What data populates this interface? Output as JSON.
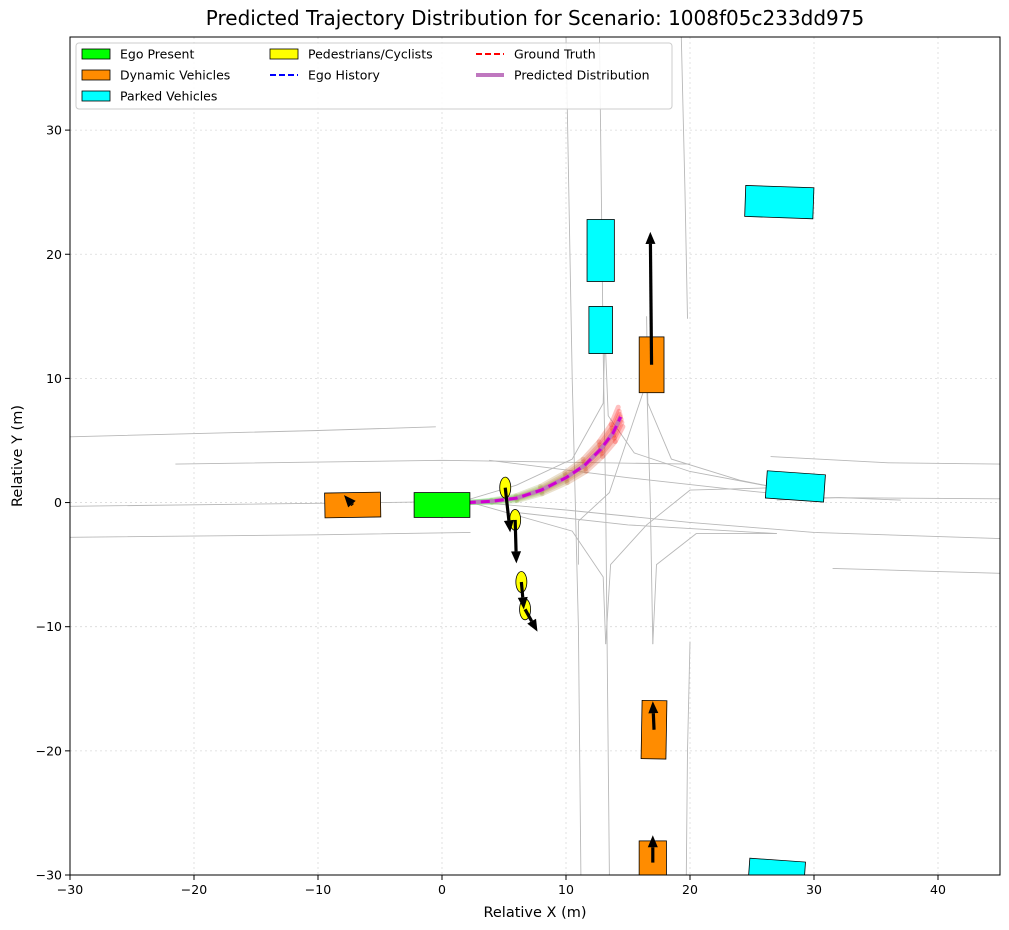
{
  "chart_data": {
    "type": "scatter",
    "title": "Predicted Trajectory Distribution for Scenario: 1008f05c233dd975",
    "xlabel": "Relative X (m)",
    "ylabel": "Relative Y (m)",
    "xlim": [
      -30,
      45
    ],
    "ylim": [
      -30,
      37.5
    ],
    "xticks": [
      -30,
      -20,
      -10,
      0,
      10,
      20,
      30,
      40
    ],
    "yticks": [
      -30,
      -20,
      -10,
      0,
      10,
      20,
      30
    ],
    "grid": true,
    "legend_position": "top-left",
    "legend": [
      {
        "label": "Ego Present",
        "kind": "patch",
        "color": "#00ff00"
      },
      {
        "label": "Dynamic Vehicles",
        "kind": "patch",
        "color": "#ff8c00"
      },
      {
        "label": "Parked Vehicles",
        "kind": "patch",
        "color": "#00ffff"
      },
      {
        "label": "Pedestrians/Cyclists",
        "kind": "patch",
        "color": "#ffff00"
      },
      {
        "label": "Ego History",
        "kind": "dashed",
        "color": "#0000ff"
      },
      {
        "label": "Ground Truth",
        "kind": "dashed",
        "color": "#ff0000"
      },
      {
        "label": "Predicted Distribution",
        "kind": "thick",
        "color": "#bf77bf"
      }
    ],
    "lanes": [
      [
        [
          -30,
          5.3
        ],
        [
          -10,
          5.8
        ],
        [
          -0.5,
          6.1
        ]
      ],
      [
        [
          -21.5,
          3.1
        ],
        [
          0,
          3.4
        ],
        [
          20,
          3.1
        ]
      ],
      [
        [
          -30,
          -0.3
        ],
        [
          -5,
          0
        ],
        [
          2,
          0.1
        ]
      ],
      [
        [
          -30,
          -2.8
        ],
        [
          -10,
          -2.6
        ],
        [
          2.3,
          -2.4
        ]
      ],
      [
        [
          3.8,
          3.4
        ],
        [
          15,
          2
        ],
        [
          24,
          1
        ],
        [
          30,
          0.4
        ],
        [
          45,
          0.3
        ]
      ],
      [
        [
          2,
          0.1
        ],
        [
          10,
          -0.6
        ],
        [
          20,
          -1.6
        ],
        [
          30,
          -2.4
        ],
        [
          45,
          -2.9
        ]
      ],
      [
        [
          6,
          -0.8
        ],
        [
          15,
          -1.8
        ],
        [
          27,
          -2.5
        ]
      ],
      [
        [
          31.5,
          -5.3
        ],
        [
          38,
          -5.5
        ],
        [
          45,
          -5.7
        ]
      ],
      [
        [
          26.5,
          3.7
        ],
        [
          36,
          3.2
        ],
        [
          45,
          3.1
        ]
      ],
      [
        [
          27,
          0.2
        ],
        [
          32,
          0.4
        ],
        [
          37,
          0.2
        ]
      ],
      [
        [
          10,
          37.5
        ],
        [
          10.5,
          10
        ],
        [
          11,
          -10
        ],
        [
          11.2,
          -30
        ]
      ],
      [
        [
          12.7,
          37.5
        ],
        [
          13,
          12.1
        ],
        [
          13.2,
          0
        ],
        [
          13.5,
          -30
        ]
      ],
      [
        [
          16.5,
          10
        ],
        [
          16.8,
          0
        ],
        [
          17,
          -11.4
        ]
      ],
      [
        [
          19.3,
          37.5
        ],
        [
          19.6,
          25
        ],
        [
          19.8,
          14.8
        ]
      ],
      [
        [
          20,
          -11.2
        ],
        [
          19.8,
          -20
        ],
        [
          19.7,
          -30
        ]
      ],
      [
        [
          13.1,
          12.1
        ],
        [
          13,
          8
        ],
        [
          10.5,
          3.5
        ],
        [
          6,
          1.4
        ],
        [
          2,
          0.2
        ]
      ],
      [
        [
          13.2,
          12.1
        ],
        [
          13.4,
          7
        ],
        [
          15.5,
          4
        ],
        [
          20,
          2.5
        ],
        [
          27,
          1.2
        ]
      ],
      [
        [
          16.5,
          15
        ],
        [
          16.6,
          8
        ],
        [
          18.5,
          3.5
        ],
        [
          24,
          1.8
        ],
        [
          27,
          1.2
        ]
      ],
      [
        [
          13.2,
          -11.4
        ],
        [
          13,
          -6
        ],
        [
          10.5,
          -2.3
        ],
        [
          2,
          0.1
        ]
      ],
      [
        [
          17,
          -11.4
        ],
        [
          17.3,
          -5
        ],
        [
          20.5,
          -2.5
        ],
        [
          27,
          -2.5
        ]
      ],
      [
        [
          13.2,
          -11.4
        ],
        [
          13.6,
          -5
        ],
        [
          16.5,
          -1.8
        ],
        [
          20,
          1
        ],
        [
          27,
          1.2
        ]
      ],
      [
        [
          11,
          -5
        ],
        [
          11,
          -1.5
        ],
        [
          13.5,
          0.8
        ],
        [
          16.6,
          10
        ]
      ]
    ],
    "ego": {
      "cx": 0,
      "cy": -0.2,
      "length": 4.5,
      "width": 2.0,
      "heading": 0
    },
    "dynamic_vehicles": [
      {
        "cx": -7.2,
        "cy": -0.2,
        "length": 4.5,
        "width": 2.0,
        "heading": 1,
        "arrow_to": [
          -7.9,
          0.6
        ]
      },
      {
        "cx": 16.9,
        "cy": 11.1,
        "length": 4.5,
        "width": 2.0,
        "heading": 90,
        "arrow_to": [
          16.8,
          21.8
        ]
      },
      {
        "cx": 17.1,
        "cy": -18.3,
        "length": 4.7,
        "width": 2.0,
        "heading": 89,
        "arrow_to": [
          17.0,
          -16.0
        ]
      },
      {
        "cx": 17.0,
        "cy": -29.0,
        "length": 3.5,
        "width": 2.2,
        "heading": 90,
        "arrow_to": [
          17.0,
          -26.8
        ]
      }
    ],
    "parked_vehicles": [
      {
        "cx": 12.8,
        "cy": 20.3,
        "length": 5.0,
        "width": 2.2,
        "heading": 90
      },
      {
        "cx": 12.8,
        "cy": 13.9,
        "length": 3.8,
        "width": 1.9,
        "heading": 90
      },
      {
        "cx": 27.2,
        "cy": 24.2,
        "length": 5.5,
        "width": 2.5,
        "heading": -2
      },
      {
        "cx": 28.5,
        "cy": 1.3,
        "length": 4.7,
        "width": 2.2,
        "heading": -4
      },
      {
        "cx": 27.0,
        "cy": -29.8,
        "length": 4.5,
        "width": 2.0,
        "heading": -4
      }
    ],
    "pedestrians": [
      {
        "cx": 5.1,
        "cy": 1.2,
        "arrow_to": [
          5.5,
          -2.4
        ]
      },
      {
        "cx": 5.9,
        "cy": -1.4,
        "arrow_to": [
          6.0,
          -4.9
        ]
      },
      {
        "cx": 6.4,
        "cy": -6.4,
        "arrow_to": [
          6.6,
          -8.6
        ]
      },
      {
        "cx": 6.7,
        "cy": -8.6,
        "arrow_to": [
          7.7,
          -10.4
        ]
      }
    ],
    "predicted_samples": {
      "base": [
        [
          2,
          0
        ],
        [
          4,
          0.1
        ],
        [
          6,
          0.35
        ],
        [
          8,
          1.0
        ],
        [
          10,
          2.0
        ],
        [
          11.5,
          3.0
        ],
        [
          12.8,
          4.3
        ],
        [
          13.8,
          5.6
        ],
        [
          14.4,
          6.9
        ]
      ],
      "offsets": [
        -0.6,
        -0.35,
        -0.15,
        0,
        0.15,
        0.35,
        0.6
      ]
    },
    "ground_truth": [
      [
        2,
        0
      ],
      [
        4,
        0.1
      ],
      [
        6,
        0.35
      ],
      [
        8,
        1.0
      ],
      [
        10,
        2.0
      ],
      [
        11.5,
        3.0
      ],
      [
        12.8,
        4.3
      ],
      [
        13.8,
        5.6
      ],
      [
        14.4,
        6.9
      ]
    ]
  }
}
